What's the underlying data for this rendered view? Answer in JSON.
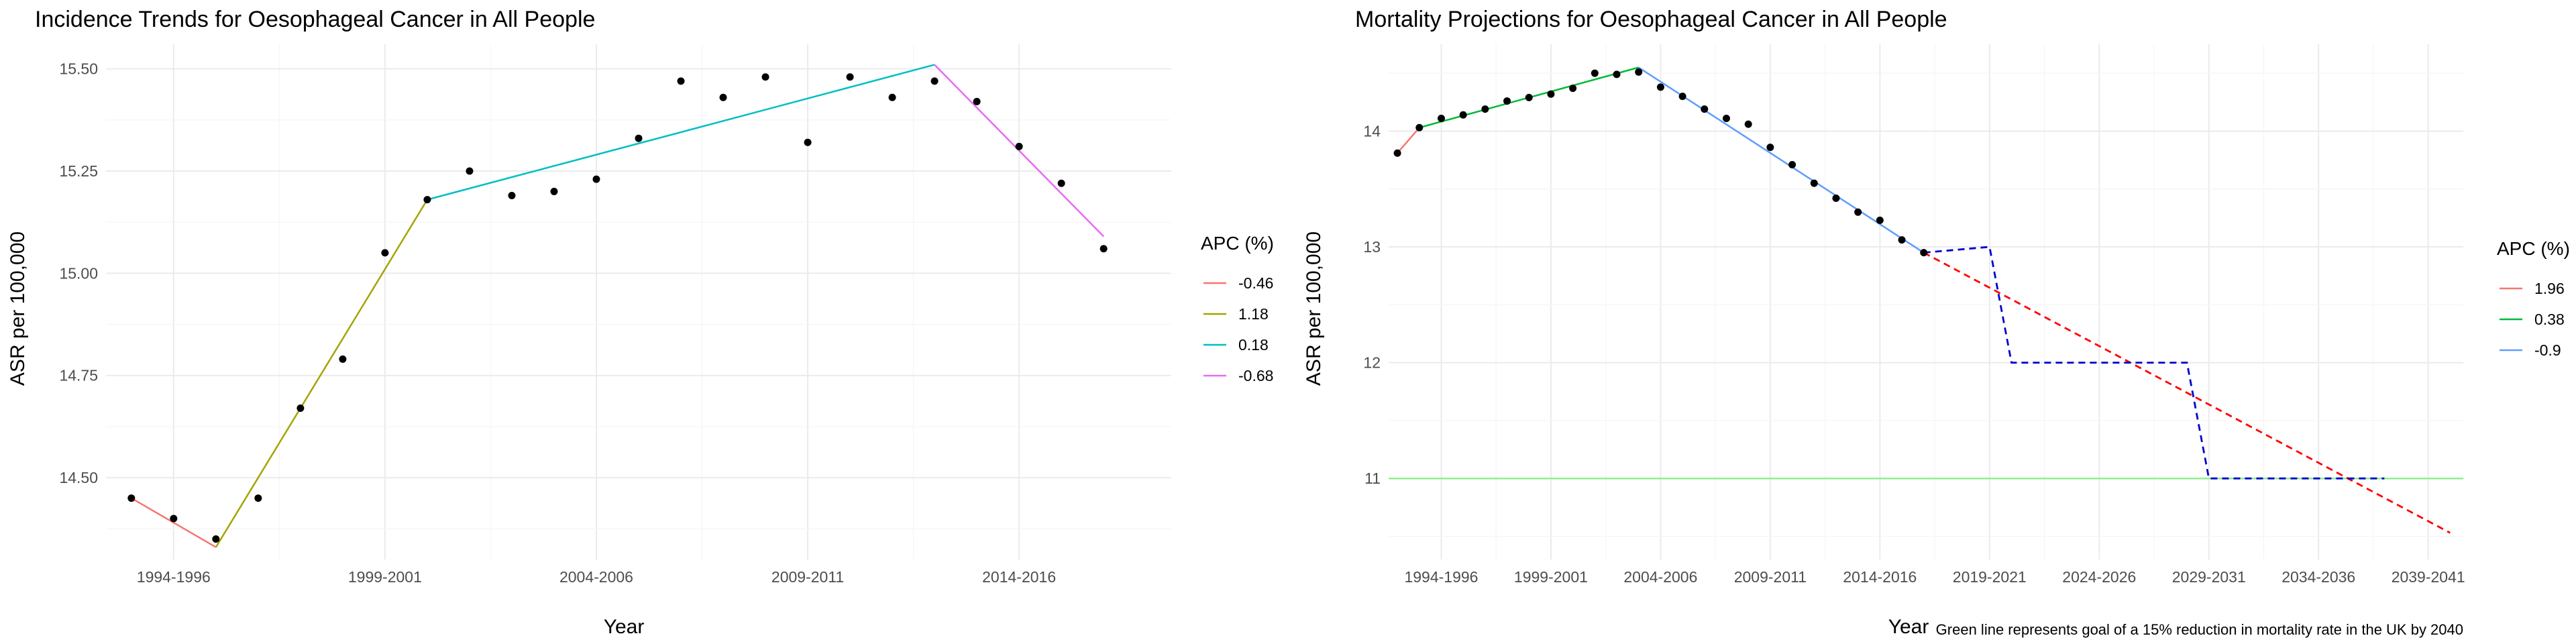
{
  "chart_data": [
    {
      "type": "scatter",
      "title": "Incidence Trends for Oesophageal Cancer in All People",
      "xlabel": "Year",
      "ylabel": "ASR per 100,000",
      "legend_title": "APC (%)",
      "legend_position": "right",
      "grid": true,
      "x_tick_labels": [
        "1994-1996",
        "1999-2001",
        "2004-2006",
        "2009-2011",
        "2014-2016"
      ],
      "y_ticks": [
        "14.50",
        "14.75",
        "15.00",
        "15.25",
        "15.50"
      ],
      "xlim": [
        1993.4,
        2018.6
      ],
      "ylim": [
        14.3,
        15.56
      ],
      "points": {
        "x": [
          1994,
          1995,
          1996,
          1997,
          1998,
          1999,
          2000,
          2001,
          2002,
          2003,
          2004,
          2005,
          2006,
          2007,
          2008,
          2009,
          2010,
          2011,
          2012,
          2013,
          2014,
          2015,
          2016,
          2017,
          2018
        ],
        "y": [
          14.45,
          14.4,
          14.35,
          14.45,
          14.67,
          14.79,
          15.05,
          15.18,
          15.25,
          15.19,
          15.2,
          15.23,
          15.33,
          15.47,
          15.43,
          15.48,
          15.32,
          15.48,
          15.43,
          15.47,
          15.42,
          15.31,
          15.22,
          15.06,
          null
        ]
      },
      "series": [
        {
          "name": "-0.46",
          "color": "#f8766d",
          "x": [
            1994,
            1996
          ],
          "y": [
            14.45,
            14.33
          ]
        },
        {
          "name": "1.18",
          "color": "#a3a500",
          "x": [
            1996,
            2001
          ],
          "y": [
            14.33,
            15.18
          ]
        },
        {
          "name": "0.18",
          "color": "#00bfc4",
          "x": [
            2001,
            2013
          ],
          "y": [
            15.18,
            15.51
          ]
        },
        {
          "name": "-0.68",
          "color": "#e76bf3",
          "x": [
            2013,
            2017
          ],
          "y": [
            15.51,
            15.09
          ]
        }
      ]
    },
    {
      "type": "scatter",
      "title": "Mortality Projections for Oesophageal Cancer in All People",
      "xlabel": "Year",
      "ylabel": "ASR per 100,000",
      "legend_title": "APC (%)",
      "legend_position": "right",
      "grid": true,
      "caption": "Green line represents goal of a 15% reduction in mortality rate in the UK by 2040",
      "x_tick_labels": [
        "1994-1996",
        "1999-2001",
        "2004-2006",
        "2009-2011",
        "2014-2016",
        "2019-2021",
        "2024-2026",
        "2029-2031",
        "2034-2036",
        "2039-2041"
      ],
      "y_ticks": [
        "11",
        "12",
        "13",
        "14"
      ],
      "xlim": [
        1992.6,
        2041.6
      ],
      "ylim": [
        10.3,
        14.75
      ],
      "points": {
        "x": [
          1993,
          1994,
          1995,
          1996,
          1997,
          1998,
          1999,
          2000,
          2001,
          2002,
          2003,
          2004,
          2005,
          2006,
          2007,
          2008,
          2009,
          2010,
          2011,
          2012,
          2013,
          2014,
          2015,
          2016,
          2017
        ],
        "y": [
          13.81,
          14.03,
          14.11,
          14.14,
          14.19,
          14.26,
          14.29,
          14.32,
          14.37,
          14.5,
          14.49,
          14.51,
          14.38,
          14.3,
          14.19,
          14.11,
          14.06,
          13.86,
          13.71,
          13.55,
          13.42,
          13.3,
          13.23,
          13.06,
          12.95
        ]
      },
      "series": [
        {
          "name": "1.96",
          "color": "#f8766d",
          "x": [
            1993,
            1994
          ],
          "y": [
            13.81,
            14.03
          ]
        },
        {
          "name": "0.38",
          "color": "#00ba38",
          "x": [
            1994,
            2004
          ],
          "y": [
            14.03,
            14.55
          ]
        },
        {
          "name": "-0.9",
          "color": "#619cff",
          "x": [
            2004,
            2017
          ],
          "y": [
            14.55,
            12.95
          ]
        }
      ],
      "projections": [
        {
          "color": "#ff0000",
          "dash": true,
          "x": [
            2017,
            2041
          ],
          "y": [
            12.95,
            10.53
          ]
        },
        {
          "color": "#0000cd",
          "dash": true,
          "x": [
            2017,
            2020,
            2021,
            2025,
            2029,
            2030,
            2034,
            2038
          ],
          "y": [
            12.95,
            13.0,
            12.0,
            12.0,
            12.0,
            11.0,
            11.0,
            11.0
          ]
        }
      ],
      "goal_line": {
        "color": "#90ee90",
        "y": 11.0
      }
    }
  ]
}
